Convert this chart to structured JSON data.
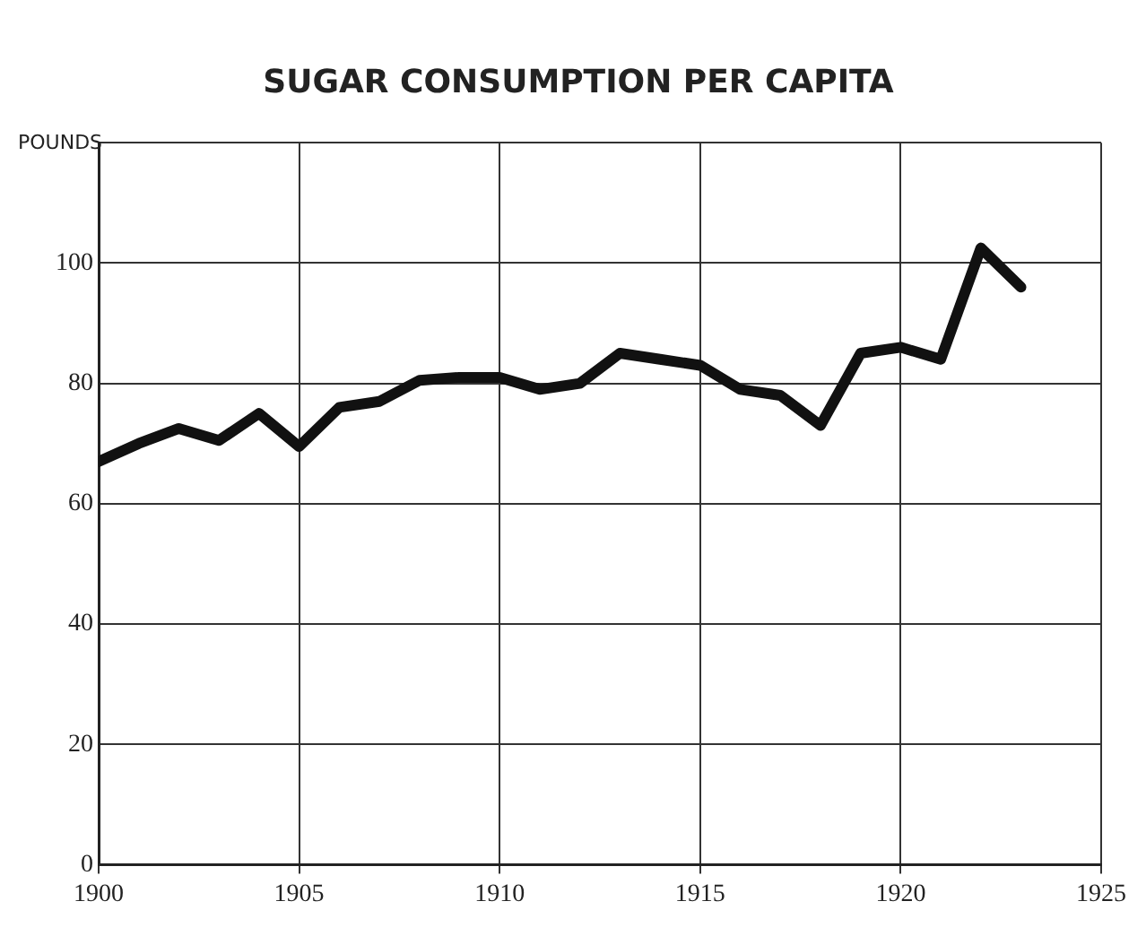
{
  "chart_data": {
    "type": "line",
    "title": "SUGAR CONSUMPTION PER CAPITA",
    "ylabel": "POUNDS",
    "x": [
      1900,
      1901,
      1902,
      1903,
      1904,
      1905,
      1906,
      1907,
      1908,
      1909,
      1910,
      1911,
      1912,
      1913,
      1914,
      1915,
      1916,
      1917,
      1918,
      1919,
      1920,
      1921,
      1922,
      1923
    ],
    "series": [
      {
        "color": "#111111",
        "values": [
          67,
          70,
          72.5,
          70.5,
          75,
          69.5,
          76,
          77,
          80.5,
          81,
          81,
          79,
          80,
          85,
          84,
          83,
          79,
          78,
          73,
          85,
          86,
          84,
          102.5,
          96
        ]
      }
    ],
    "xlim": [
      1900,
      1925
    ],
    "xticks": [
      1900,
      1905,
      1910,
      1915,
      1920,
      1925
    ],
    "ylim": [
      0,
      120
    ],
    "yticks": [
      0,
      20,
      40,
      60,
      80,
      100,
      {
        "value": 120,
        "label": null
      }
    ],
    "grid": true,
    "legend": false,
    "marker": "none",
    "line_style": "solid"
  }
}
